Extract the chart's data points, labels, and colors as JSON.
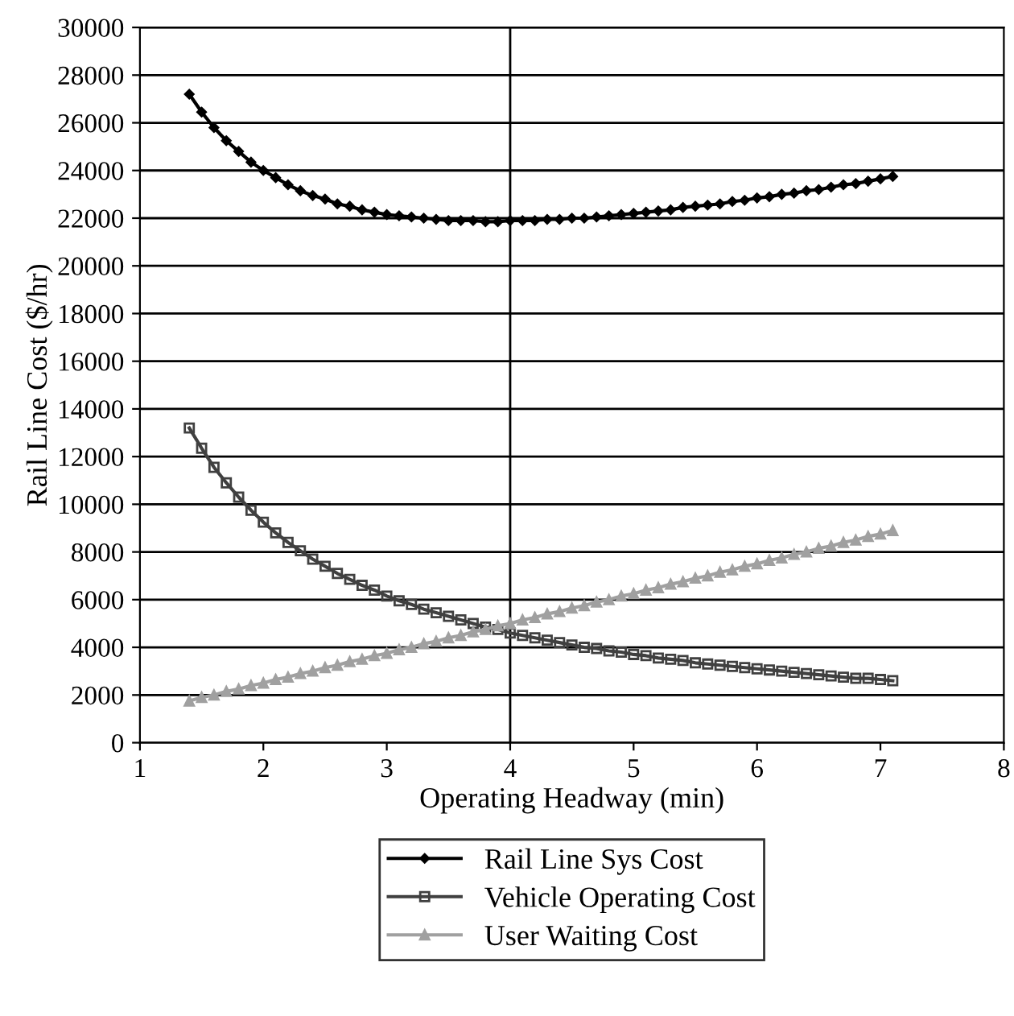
{
  "chart_data": {
    "type": "line",
    "xlabel": "Operating Headway (min)",
    "ylabel": "Rail Line Cost ($/hr)",
    "x": [
      1.4,
      1.5,
      1.6,
      1.7,
      1.8,
      1.9,
      2.0,
      2.1,
      2.2,
      2.3,
      2.4,
      2.5,
      2.6,
      2.7,
      2.8,
      2.9,
      3.0,
      3.1,
      3.2,
      3.3,
      3.4,
      3.5,
      3.6,
      3.7,
      3.8,
      3.9,
      4.0,
      4.1,
      4.2,
      4.3,
      4.4,
      4.5,
      4.6,
      4.7,
      4.8,
      4.9,
      5.0,
      5.1,
      5.2,
      5.3,
      5.4,
      5.5,
      5.6,
      5.7,
      5.8,
      5.9,
      6.0,
      6.1,
      6.2,
      6.3,
      6.4,
      6.5,
      6.6,
      6.7,
      6.8,
      6.9,
      7.0,
      7.1
    ],
    "series": [
      {
        "name": "Rail Line Sys Cost",
        "color": "#000000",
        "marker": "diamond",
        "values": [
          27200,
          26450,
          25800,
          25250,
          24800,
          24350,
          24000,
          23700,
          23400,
          23150,
          22950,
          22800,
          22600,
          22500,
          22350,
          22250,
          22150,
          22100,
          22050,
          22000,
          21950,
          21900,
          21900,
          21900,
          21850,
          21850,
          21900,
          21900,
          21900,
          21950,
          21950,
          22000,
          22000,
          22050,
          22100,
          22150,
          22200,
          22250,
          22300,
          22350,
          22450,
          22500,
          22550,
          22600,
          22700,
          22750,
          22850,
          22900,
          23000,
          23050,
          23150,
          23200,
          23300,
          23400,
          23450,
          23550,
          23650,
          23750
        ]
      },
      {
        "name": "Vehicle Operating Cost",
        "color": "#404040",
        "marker": "square",
        "values": [
          13200,
          12350,
          11550,
          10900,
          10300,
          9750,
          9250,
          8800,
          8400,
          8050,
          7700,
          7400,
          7100,
          6850,
          6600,
          6400,
          6150,
          5950,
          5800,
          5600,
          5450,
          5300,
          5150,
          5000,
          4850,
          4750,
          4600,
          4500,
          4400,
          4300,
          4200,
          4100,
          4000,
          3950,
          3850,
          3800,
          3700,
          3650,
          3550,
          3500,
          3450,
          3350,
          3300,
          3250,
          3200,
          3150,
          3100,
          3050,
          3000,
          2950,
          2900,
          2850,
          2800,
          2750,
          2700,
          2700,
          2650,
          2600
        ]
      },
      {
        "name": "User Waiting Cost",
        "color": "#a0a0a0",
        "marker": "triangle",
        "values": [
          1750,
          1900,
          2000,
          2150,
          2250,
          2400,
          2500,
          2650,
          2750,
          2900,
          3000,
          3150,
          3250,
          3400,
          3500,
          3650,
          3750,
          3900,
          4000,
          4150,
          4250,
          4400,
          4500,
          4650,
          4750,
          4900,
          5000,
          5150,
          5250,
          5400,
          5500,
          5650,
          5750,
          5900,
          6000,
          6150,
          6250,
          6400,
          6500,
          6650,
          6750,
          6900,
          7000,
          7150,
          7250,
          7400,
          7500,
          7650,
          7750,
          7900,
          8000,
          8150,
          8250,
          8400,
          8500,
          8650,
          8750,
          8900
        ]
      }
    ],
    "xlim": [
      1,
      8
    ],
    "xticks": [
      1,
      2,
      3,
      4,
      5,
      6,
      7,
      8
    ],
    "ylim": [
      0,
      30000
    ],
    "yticks": [
      0,
      2000,
      4000,
      6000,
      8000,
      10000,
      12000,
      14000,
      16000,
      18000,
      20000,
      22000,
      24000,
      26000,
      28000,
      30000
    ],
    "grid": "y",
    "legend": "bottom",
    "line_style": "solid",
    "ref_lines": [
      {
        "axis": "x",
        "value": 4,
        "color": "#000000"
      }
    ]
  }
}
